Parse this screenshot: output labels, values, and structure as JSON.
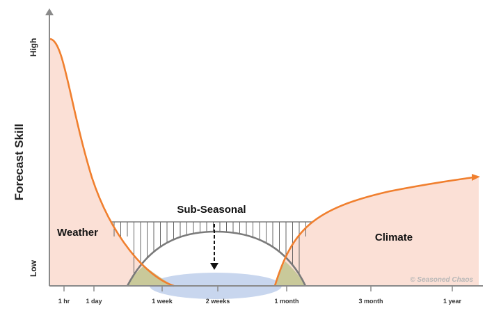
{
  "chart_data": {
    "type": "area",
    "ylabel": "Forecast Skill",
    "y_ticks": [
      "Low",
      "High"
    ],
    "x_ticks": [
      "1 hr",
      "1 day",
      "1 week",
      "2 weeks",
      "1 month",
      "3 month",
      "1 year"
    ],
    "regions": {
      "weather": "Weather",
      "subseasonal": "Sub-Seasonal",
      "climate": "Climate"
    },
    "series": [
      {
        "name": "Weather",
        "x": [
          "1 hr",
          "1 day",
          "1 week"
        ],
        "y_relative": [
          0.95,
          0.35,
          0.0
        ]
      },
      {
        "name": "Climate",
        "x": [
          "1 month",
          "3 month",
          "1 year"
        ],
        "y_relative": [
          0.0,
          0.33,
          0.43
        ]
      }
    ],
    "colors": {
      "curve": "#f07f2e",
      "fill": "#fbe0d6",
      "arch": "#7a7a7a",
      "overlap": "#c9c99a",
      "water": "#c8d6ee",
      "axis": "#8a8a8a"
    },
    "credit": "© Seasoned Chaos"
  }
}
